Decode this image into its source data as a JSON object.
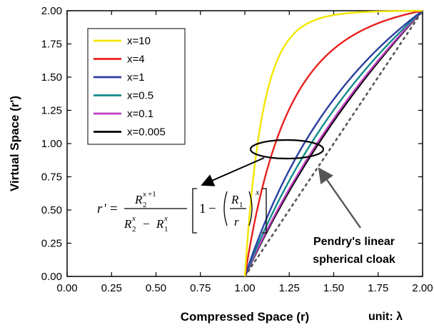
{
  "chart_data": {
    "type": "line",
    "xlabel": "Compressed Space (r)",
    "ylabel": "Virtual Space (r')",
    "xlim": [
      0,
      2
    ],
    "ylim": [
      0,
      2
    ],
    "x_ticks": [
      "0.00",
      "0.25",
      "0.50",
      "0.75",
      "1.00",
      "1.25",
      "1.50",
      "1.75",
      "2.00"
    ],
    "y_ticks": [
      "0.00",
      "0.25",
      "0.50",
      "0.75",
      "1.00",
      "1.25",
      "1.50",
      "1.75",
      "2.00"
    ],
    "grid": false,
    "legend_position": "top-left",
    "R1": 1,
    "R2": 2,
    "series": [
      {
        "name": "x=10",
        "exponent": 10,
        "color": "#f2e600"
      },
      {
        "name": "x=4",
        "exponent": 4,
        "color": "#e8201e"
      },
      {
        "name": "x=1",
        "exponent": 1,
        "color": "#2b3fa0"
      },
      {
        "name": "x=0.5",
        "exponent": 0.5,
        "color": "#138a8a"
      },
      {
        "name": "x=0.1",
        "exponent": 0.1,
        "color": "#c040c0"
      },
      {
        "name": "x=0.005",
        "exponent": 0.005,
        "color": "#000000"
      }
    ],
    "reference_line": {
      "x": [
        1,
        2
      ],
      "y": [
        0,
        2
      ],
      "style": "dotted",
      "color": "#555555"
    },
    "annotations": {
      "pendry_line1": "Pendry's linear",
      "pendry_line2": "spherical cloak",
      "unit": "unit: λ",
      "formula": "r' = R2^(x+1) / (R2^x − R1^x) [1 − (R1/r)^x]"
    }
  }
}
